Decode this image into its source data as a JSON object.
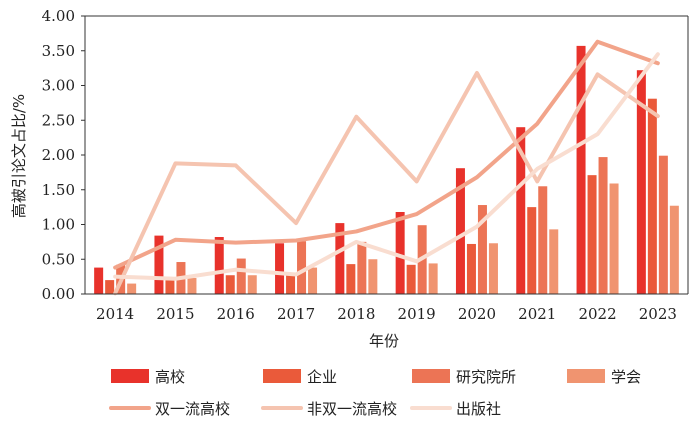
{
  "chart_data": {
    "type": "bar",
    "xlabel": "年份",
    "ylabel": "高被引论文占比/%",
    "ylim": [
      0,
      4
    ],
    "yticks": [
      "0.00",
      "0.50",
      "1.00",
      "1.50",
      "2.00",
      "2.50",
      "3.00",
      "3.50",
      "4.00"
    ],
    "grid": false,
    "legend_position": "bottom",
    "categories": [
      "2014",
      "2015",
      "2016",
      "2017",
      "2018",
      "2019",
      "2020",
      "2021",
      "2022",
      "2023"
    ],
    "bar_series": [
      {
        "name": "高校",
        "color": "#e8322b",
        "values": [
          0.38,
          0.84,
          0.82,
          0.73,
          1.02,
          1.18,
          1.81,
          2.4,
          3.57,
          3.22
        ]
      },
      {
        "name": "企业",
        "color": "#ea5a3a",
        "values": [
          0.2,
          0.2,
          0.27,
          0.3,
          0.43,
          0.42,
          0.72,
          1.25,
          1.71,
          2.81
        ]
      },
      {
        "name": "研究院所",
        "color": "#ec7455",
        "values": [
          0.42,
          0.46,
          0.51,
          0.76,
          0.75,
          0.99,
          1.28,
          1.55,
          1.97,
          1.99
        ]
      },
      {
        "name": "学会",
        "color": "#f09470",
        "values": [
          0.15,
          0.23,
          0.27,
          0.38,
          0.5,
          0.44,
          0.73,
          0.93,
          1.59,
          1.27
        ]
      }
    ],
    "line_series": [
      {
        "name": "双一流高校",
        "color": "#f2a48a",
        "values": [
          0.38,
          0.78,
          0.74,
          0.77,
          0.9,
          1.15,
          1.68,
          2.45,
          3.63,
          3.32
        ]
      },
      {
        "name": "非双一流高校",
        "color": "#f5c4b0",
        "values": [
          0.01,
          1.88,
          1.85,
          1.02,
          2.55,
          1.62,
          3.18,
          1.62,
          3.16,
          2.56
        ]
      },
      {
        "name": "出版社",
        "color": "#f9ddd0",
        "values": [
          0.25,
          0.22,
          0.35,
          0.28,
          0.75,
          0.47,
          0.97,
          1.8,
          2.3,
          3.45
        ]
      }
    ]
  }
}
